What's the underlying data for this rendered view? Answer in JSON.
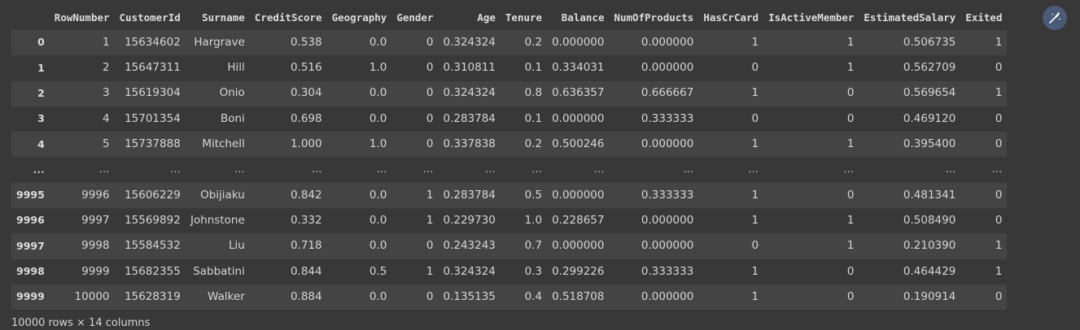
{
  "table": {
    "columns": [
      "RowNumber",
      "CustomerId",
      "Surname",
      "CreditScore",
      "Geography",
      "Gender",
      "Age",
      "Tenure",
      "Balance",
      "NumOfProducts",
      "HasCrCard",
      "IsActiveMember",
      "EstimatedSalary",
      "Exited"
    ],
    "rows": [
      {
        "index": "0",
        "cells": [
          "1",
          "15634602",
          "Hargrave",
          "0.538",
          "0.0",
          "0",
          "0.324324",
          "0.2",
          "0.000000",
          "0.000000",
          "1",
          "1",
          "0.506735",
          "1"
        ]
      },
      {
        "index": "1",
        "cells": [
          "2",
          "15647311",
          "Hill",
          "0.516",
          "1.0",
          "0",
          "0.310811",
          "0.1",
          "0.334031",
          "0.000000",
          "0",
          "1",
          "0.562709",
          "0"
        ]
      },
      {
        "index": "2",
        "cells": [
          "3",
          "15619304",
          "Onio",
          "0.304",
          "0.0",
          "0",
          "0.324324",
          "0.8",
          "0.636357",
          "0.666667",
          "1",
          "0",
          "0.569654",
          "1"
        ]
      },
      {
        "index": "3",
        "cells": [
          "4",
          "15701354",
          "Boni",
          "0.698",
          "0.0",
          "0",
          "0.283784",
          "0.1",
          "0.000000",
          "0.333333",
          "0",
          "0",
          "0.469120",
          "0"
        ]
      },
      {
        "index": "4",
        "cells": [
          "5",
          "15737888",
          "Mitchell",
          "1.000",
          "1.0",
          "0",
          "0.337838",
          "0.2",
          "0.500246",
          "0.000000",
          "1",
          "1",
          "0.395400",
          "0"
        ]
      },
      {
        "index": "...",
        "cells": [
          "...",
          "...",
          "...",
          "...",
          "...",
          "...",
          "...",
          "...",
          "...",
          "...",
          "...",
          "...",
          "...",
          "..."
        ]
      },
      {
        "index": "9995",
        "cells": [
          "9996",
          "15606229",
          "Obijiaku",
          "0.842",
          "0.0",
          "1",
          "0.283784",
          "0.5",
          "0.000000",
          "0.333333",
          "1",
          "0",
          "0.481341",
          "0"
        ]
      },
      {
        "index": "9996",
        "cells": [
          "9997",
          "15569892",
          "Johnstone",
          "0.332",
          "0.0",
          "1",
          "0.229730",
          "1.0",
          "0.228657",
          "0.000000",
          "1",
          "1",
          "0.508490",
          "0"
        ]
      },
      {
        "index": "9997",
        "cells": [
          "9998",
          "15584532",
          "Liu",
          "0.718",
          "0.0",
          "0",
          "0.243243",
          "0.7",
          "0.000000",
          "0.000000",
          "0",
          "1",
          "0.210390",
          "1"
        ]
      },
      {
        "index": "9998",
        "cells": [
          "9999",
          "15682355",
          "Sabbatini",
          "0.844",
          "0.5",
          "1",
          "0.324324",
          "0.3",
          "0.299226",
          "0.333333",
          "1",
          "0",
          "0.464429",
          "1"
        ]
      },
      {
        "index": "9999",
        "cells": [
          "10000",
          "15628319",
          "Walker",
          "0.884",
          "0.0",
          "0",
          "0.135135",
          "0.4",
          "0.518708",
          "0.000000",
          "1",
          "0",
          "0.190914",
          "0"
        ]
      }
    ]
  },
  "footer": {
    "shape_text": "10000 rows × 14 columns"
  },
  "toolbar": {
    "magic_icon": "magic-wand-icon",
    "accent_color": "#4b5a76"
  }
}
